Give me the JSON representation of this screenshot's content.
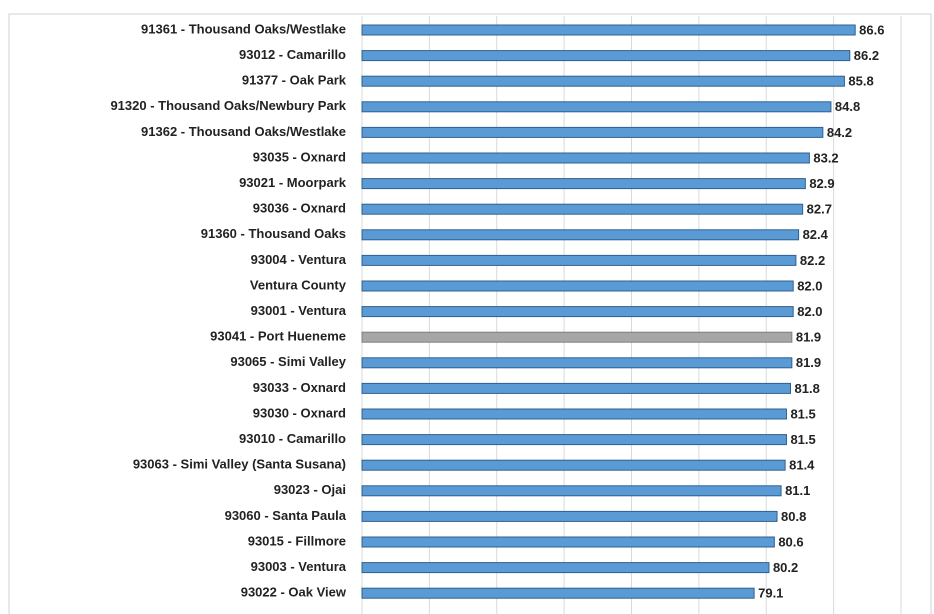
{
  "chart_data": {
    "type": "barh",
    "categories": [
      "91361 - Thousand Oaks/Westlake",
      "93012 - Camarillo",
      "91377 - Oak Park",
      "91320 - Thousand Oaks/Newbury Park",
      "91362 - Thousand Oaks/Westlake",
      "93035 - Oxnard",
      "93021 - Moorpark",
      "93036 - Oxnard",
      "91360 - Thousand Oaks",
      "93004 - Ventura",
      "Ventura County",
      "93001 - Ventura",
      "93041 - Port Hueneme",
      "93065 - Simi Valley",
      "93033 - Oxnard",
      "93030 - Oxnard",
      "93010 - Camarillo",
      "93063 - Simi Valley (Santa Susana)",
      "93023 - Ojai",
      "93060 - Santa Paula",
      "93015 - Fillmore",
      "93003 - Ventura",
      "93022 - Oak View"
    ],
    "values": [
      86.6,
      86.2,
      85.8,
      84.8,
      84.2,
      83.2,
      82.9,
      82.7,
      82.4,
      82.2,
      82.0,
      82.0,
      81.9,
      81.9,
      81.8,
      81.5,
      81.5,
      81.4,
      81.1,
      80.8,
      80.6,
      80.2,
      79.1
    ],
    "value_labels": [
      "86.6",
      "86.2",
      "85.8",
      "84.8",
      "84.2",
      "83.2",
      "82.9",
      "82.7",
      "82.4",
      "82.2",
      "82.0",
      "82.0",
      "81.9",
      "81.9",
      "81.8",
      "81.5",
      "81.5",
      "81.4",
      "81.1",
      "80.8",
      "80.6",
      "80.2",
      "79.1"
    ],
    "colors": [
      "#5b9bd5",
      "#5b9bd5",
      "#5b9bd5",
      "#5b9bd5",
      "#5b9bd5",
      "#5b9bd5",
      "#5b9bd5",
      "#5b9bd5",
      "#5b9bd5",
      "#5b9bd5",
      "#5b9bd5",
      "#5b9bd5",
      "#a6a6a6",
      "#5b9bd5",
      "#5b9bd5",
      "#5b9bd5",
      "#5b9bd5",
      "#5b9bd5",
      "#5b9bd5",
      "#5b9bd5",
      "#5b9bd5",
      "#5b9bd5",
      "#5b9bd5"
    ],
    "xlim": [
      50,
      90
    ],
    "grid": true
  }
}
